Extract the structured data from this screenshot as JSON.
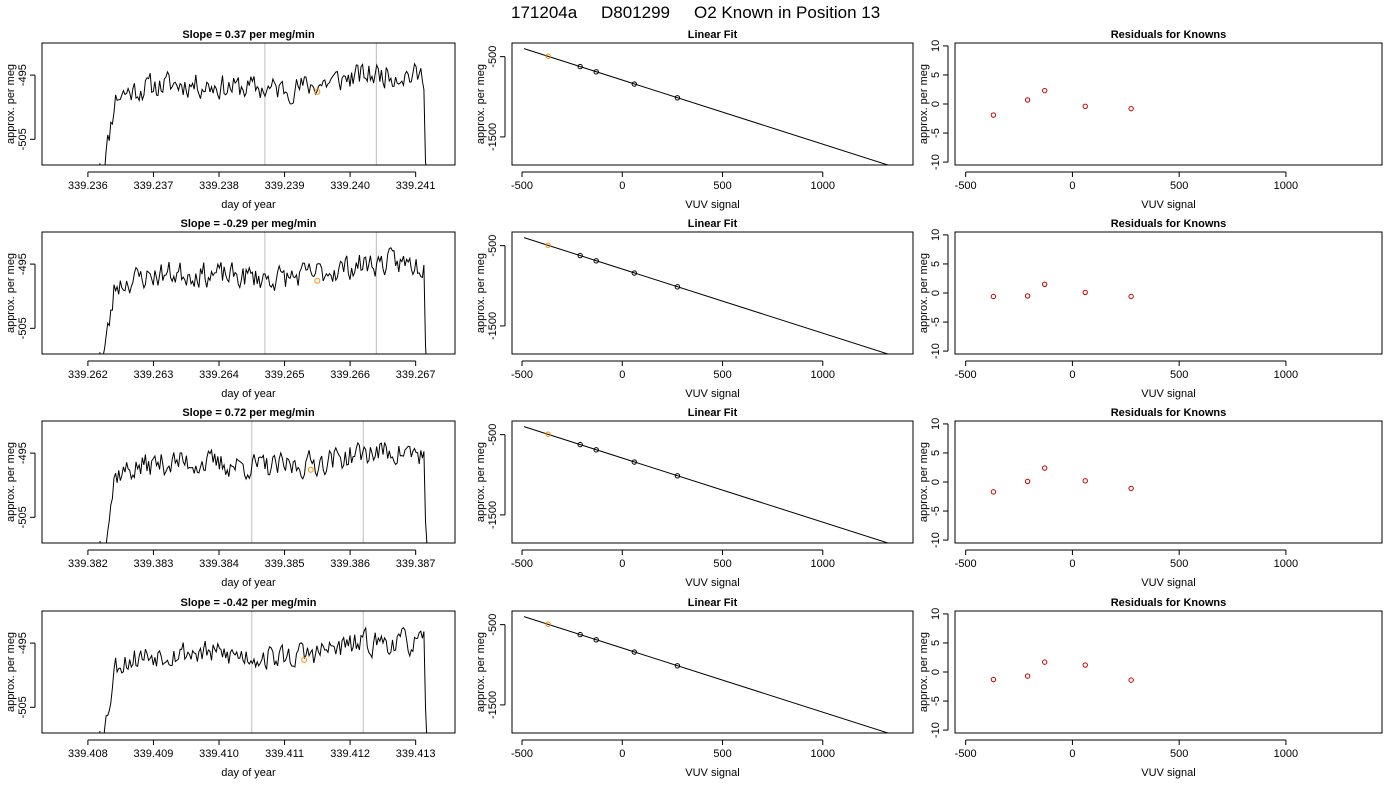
{
  "figure": {
    "title_run": "171204a",
    "title_id": "D801299",
    "title_desc": "O2 Known in Position  13"
  },
  "colors": {
    "line": "#000000",
    "marker_highlight": "#ff8c00",
    "residual_points": "#cc0000",
    "vertical_guides": "#bebebe"
  },
  "chart_data": [
    {
      "row": 1,
      "panel": "timeseries",
      "type": "line",
      "title": "Slope =  0.37  per meg/min",
      "xlabel": "day of year",
      "ylabel": "approx. per meg",
      "xlim": [
        339.2353,
        339.2416
      ],
      "ylim": [
        -509,
        -490
      ],
      "xticks": [
        "339.236",
        "339.237",
        "339.238",
        "339.239",
        "339.240",
        "339.241"
      ],
      "yticks": [
        "-495",
        "-505"
      ],
      "vlines": [
        339.2387,
        339.2404
      ],
      "highlight_point": {
        "x": 339.2395,
        "y": -497.6
      },
      "series_seed": 11
    },
    {
      "row": 1,
      "panel": "fit",
      "type": "line+scatter",
      "title": "Linear Fit",
      "xlabel": "VUV signal",
      "ylabel": "approx. per meg",
      "xlim": [
        -550,
        1450
      ],
      "ylim": [
        -1850,
        -330
      ],
      "xticks": [
        "-500",
        "0",
        "500",
        "1000"
      ],
      "yticks": [
        "-500",
        "-1500"
      ],
      "fit_line": {
        "x": [
          -490,
          1400
        ],
        "y": [
          -400,
          -1910
        ]
      },
      "points": {
        "x": [
          -370,
          -210,
          -130,
          60,
          275
        ],
        "y": [
          -495,
          -624,
          -689,
          -841,
          -1013
        ]
      },
      "highlight_index": 0
    },
    {
      "row": 1,
      "panel": "residuals",
      "type": "scatter",
      "title": "Residuals for Knowns",
      "xlabel": "VUV signal",
      "ylabel": "approx. per meg",
      "xlim": [
        -550,
        1450
      ],
      "ylim": [
        -10.5,
        10.5
      ],
      "xticks": [
        "-500",
        "0",
        "500",
        "1000"
      ],
      "yticks": [
        "-10",
        "-5",
        "0",
        "5",
        "10"
      ],
      "points": {
        "x": [
          -370,
          -210,
          -130,
          60,
          275
        ],
        "y": [
          -1.9,
          0.7,
          2.3,
          -0.4,
          -0.8
        ]
      }
    },
    {
      "row": 2,
      "panel": "timeseries",
      "type": "line",
      "title": "Slope =  -0.29  per meg/min",
      "xlabel": "day of year",
      "ylabel": "approx. per meg",
      "xlim": [
        339.2613,
        339.2676
      ],
      "ylim": [
        -509,
        -490
      ],
      "xticks": [
        "339.262",
        "339.263",
        "339.264",
        "339.265",
        "339.266",
        "339.267"
      ],
      "yticks": [
        "-495",
        "-505"
      ],
      "vlines": [
        339.2647,
        339.2664
      ],
      "highlight_point": {
        "x": 339.2655,
        "y": -497.6
      },
      "series_seed": 23
    },
    {
      "row": 2,
      "panel": "fit",
      "type": "line+scatter",
      "title": "Linear Fit",
      "xlabel": "VUV signal",
      "ylabel": "approx. per meg",
      "xlim": [
        -550,
        1450
      ],
      "ylim": [
        -1850,
        -330
      ],
      "xticks": [
        "-500",
        "0",
        "500",
        "1000"
      ],
      "yticks": [
        "-500",
        "-1500"
      ],
      "fit_line": {
        "x": [
          -490,
          1400
        ],
        "y": [
          -400,
          -1910
        ]
      },
      "points": {
        "x": [
          -370,
          -210,
          -130,
          60,
          275
        ],
        "y": [
          -495,
          -624,
          -689,
          -841,
          -1013
        ]
      },
      "highlight_index": 0
    },
    {
      "row": 2,
      "panel": "residuals",
      "type": "scatter",
      "title": "Residuals for Knowns",
      "xlabel": "VUV signal",
      "ylabel": "approx. per meg",
      "xlim": [
        -550,
        1450
      ],
      "ylim": [
        -10.5,
        10.5
      ],
      "xticks": [
        "-500",
        "0",
        "500",
        "1000"
      ],
      "yticks": [
        "-10",
        "-5",
        "0",
        "5",
        "10"
      ],
      "points": {
        "x": [
          -370,
          -210,
          -130,
          60,
          275
        ],
        "y": [
          -0.6,
          -0.5,
          1.5,
          0.1,
          -0.6
        ]
      }
    },
    {
      "row": 3,
      "panel": "timeseries",
      "type": "line",
      "title": "Slope =  0.72  per meg/min",
      "xlabel": "day of year",
      "ylabel": "approx. per meg",
      "xlim": [
        339.3813,
        339.3876
      ],
      "ylim": [
        -509,
        -490
      ],
      "xticks": [
        "339.382",
        "339.383",
        "339.384",
        "339.385",
        "339.386",
        "339.387"
      ],
      "yticks": [
        "-495",
        "-505"
      ],
      "vlines": [
        339.3845,
        339.3862
      ],
      "highlight_point": {
        "x": 339.3854,
        "y": -497.6
      },
      "series_seed": 37
    },
    {
      "row": 3,
      "panel": "fit",
      "type": "line+scatter",
      "title": "Linear Fit",
      "xlabel": "VUV signal",
      "ylabel": "approx. per meg",
      "xlim": [
        -550,
        1450
      ],
      "ylim": [
        -1850,
        -330
      ],
      "xticks": [
        "-500",
        "0",
        "500",
        "1000"
      ],
      "yticks": [
        "-500",
        "-1500"
      ],
      "fit_line": {
        "x": [
          -490,
          1400
        ],
        "y": [
          -400,
          -1910
        ]
      },
      "points": {
        "x": [
          -370,
          -210,
          -130,
          60,
          275
        ],
        "y": [
          -495,
          -624,
          -689,
          -841,
          -1013
        ]
      },
      "highlight_index": 0
    },
    {
      "row": 3,
      "panel": "residuals",
      "type": "scatter",
      "title": "Residuals for Knowns",
      "xlabel": "VUV signal",
      "ylabel": "approx. per meg",
      "xlim": [
        -550,
        1450
      ],
      "ylim": [
        -10.5,
        10.5
      ],
      "xticks": [
        "-500",
        "0",
        "500",
        "1000"
      ],
      "yticks": [
        "-10",
        "-5",
        "0",
        "5",
        "10"
      ],
      "points": {
        "x": [
          -370,
          -210,
          -130,
          60,
          275
        ],
        "y": [
          -1.7,
          0.1,
          2.4,
          0.2,
          -1.1
        ]
      }
    },
    {
      "row": 4,
      "panel": "timeseries",
      "type": "line",
      "title": "Slope =  -0.42  per meg/min",
      "xlabel": "day of year",
      "ylabel": "approx. per meg",
      "xlim": [
        339.4073,
        339.4136
      ],
      "ylim": [
        -509,
        -490
      ],
      "xticks": [
        "339.408",
        "339.409",
        "339.410",
        "339.411",
        "339.412",
        "339.413"
      ],
      "yticks": [
        "-495",
        "-505"
      ],
      "vlines": [
        339.4105,
        339.4122
      ],
      "highlight_point": {
        "x": 339.4113,
        "y": -497.6
      },
      "series_seed": 53
    },
    {
      "row": 4,
      "panel": "fit",
      "type": "line+scatter",
      "title": "Linear Fit",
      "xlabel": "VUV signal",
      "ylabel": "approx. per meg",
      "xlim": [
        -550,
        1450
      ],
      "ylim": [
        -1850,
        -330
      ],
      "xticks": [
        "-500",
        "0",
        "500",
        "1000"
      ],
      "yticks": [
        "-500",
        "-1500"
      ],
      "fit_line": {
        "x": [
          -490,
          1400
        ],
        "y": [
          -400,
          -1910
        ]
      },
      "points": {
        "x": [
          -370,
          -210,
          -130,
          60,
          275
        ],
        "y": [
          -495,
          -624,
          -689,
          -841,
          -1013
        ]
      },
      "highlight_index": 0
    },
    {
      "row": 4,
      "panel": "residuals",
      "type": "scatter",
      "title": "Residuals for Knowns",
      "xlabel": "VUV signal",
      "ylabel": "approx. per meg",
      "xlim": [
        -550,
        1450
      ],
      "ylim": [
        -10.5,
        10.5
      ],
      "xticks": [
        "-500",
        "0",
        "500",
        "1000"
      ],
      "yticks": [
        "-10",
        "-5",
        "0",
        "5",
        "10"
      ],
      "points": {
        "x": [
          -370,
          -210,
          -130,
          60,
          275
        ],
        "y": [
          -1.3,
          -0.7,
          1.7,
          1.2,
          -1.4
        ]
      }
    }
  ]
}
